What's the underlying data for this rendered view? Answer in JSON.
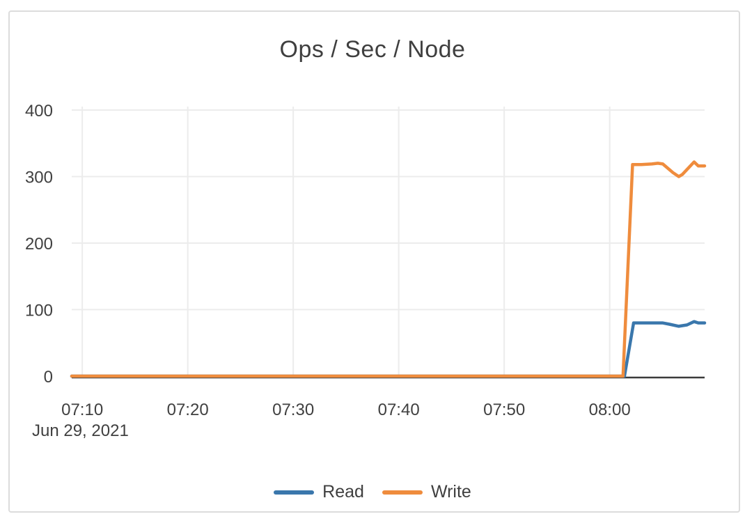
{
  "chart_data": {
    "type": "line",
    "title": "Ops / Sec / Node",
    "x_range": [
      "07:09:00",
      "08:09:00"
    ],
    "x_date_label": "Jun 29, 2021",
    "x_ticks": [
      "07:10",
      "07:20",
      "07:30",
      "07:40",
      "07:50",
      "08:00"
    ],
    "y_axis": {
      "range": [
        0,
        400
      ],
      "ticks": [
        0,
        100,
        200,
        300,
        400
      ]
    },
    "grid": true,
    "legend_position": "bottom-center",
    "series": [
      {
        "name": "Read",
        "color": "#3a77ac",
        "points": [
          [
            "07:09:00",
            0
          ],
          [
            "07:15:00",
            0
          ],
          [
            "07:20:00",
            0
          ],
          [
            "07:25:00",
            0
          ],
          [
            "07:30:00",
            0
          ],
          [
            "07:35:00",
            0
          ],
          [
            "07:40:00",
            0
          ],
          [
            "07:45:00",
            0
          ],
          [
            "07:50:00",
            0
          ],
          [
            "07:55:00",
            0
          ],
          [
            "08:00:00",
            0
          ],
          [
            "08:01:24",
            0
          ],
          [
            "08:02:16",
            80
          ],
          [
            "08:03:00",
            80
          ],
          [
            "08:04:00",
            80
          ],
          [
            "08:05:00",
            80
          ],
          [
            "08:05:40",
            78
          ],
          [
            "08:06:33",
            75
          ],
          [
            "08:07:20",
            77
          ],
          [
            "08:08:00",
            82
          ],
          [
            "08:08:24",
            80
          ],
          [
            "08:09:00",
            80
          ]
        ]
      },
      {
        "name": "Write",
        "color": "#ef8c3d",
        "points": [
          [
            "07:09:00",
            0
          ],
          [
            "07:15:00",
            0
          ],
          [
            "07:20:00",
            0
          ],
          [
            "07:25:00",
            0
          ],
          [
            "07:30:00",
            0
          ],
          [
            "07:35:00",
            0
          ],
          [
            "07:40:00",
            0
          ],
          [
            "07:45:00",
            0
          ],
          [
            "07:50:00",
            0
          ],
          [
            "07:55:00",
            0
          ],
          [
            "08:00:00",
            0
          ],
          [
            "08:01:16",
            0
          ],
          [
            "08:02:10",
            318
          ],
          [
            "08:03:00",
            318
          ],
          [
            "08:04:00",
            319
          ],
          [
            "08:04:34",
            320
          ],
          [
            "08:05:02",
            319
          ],
          [
            "08:06:00",
            306
          ],
          [
            "08:06:33",
            300
          ],
          [
            "08:06:53",
            303
          ],
          [
            "08:08:00",
            322
          ],
          [
            "08:08:24",
            316
          ],
          [
            "08:09:00",
            316
          ]
        ]
      }
    ]
  }
}
